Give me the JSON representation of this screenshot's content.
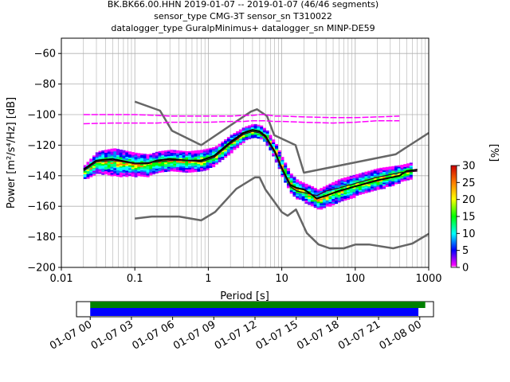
{
  "title_lines": [
    "BK.BK66.00.HHN   2019-01-07 -- 2019-01-07  (46/46 segments)",
    "sensor_type CMG-3T sensor_sn T310022",
    "datalogger_type GuralpMinimus+ datalogger_sn MINP-DE59"
  ],
  "chart_data": {
    "type": "line",
    "xlabel": "Period [s]",
    "ylabel": "Power [m²/s⁴/Hz] [dB]",
    "xscale": "log",
    "xlim": [
      0.01,
      1000
    ],
    "ylim": [
      -200,
      -50
    ],
    "x_ticks": [
      {
        "value": 0.01,
        "label": "0.01"
      },
      {
        "value": 0.1,
        "label": "0.1"
      },
      {
        "value": 1,
        "label": "1"
      },
      {
        "value": 10,
        "label": "10"
      },
      {
        "value": 100,
        "label": "100"
      },
      {
        "value": 1000,
        "label": "1000"
      }
    ],
    "y_ticks": [
      {
        "value": -60,
        "label": "−60"
      },
      {
        "value": -80,
        "label": "−80"
      },
      {
        "value": -100,
        "label": "−100"
      },
      {
        "value": -120,
        "label": "−120"
      },
      {
        "value": -140,
        "label": "−140"
      },
      {
        "value": -160,
        "label": "−160"
      },
      {
        "value": -180,
        "label": "−180"
      },
      {
        "value": -200,
        "label": "−200"
      }
    ],
    "grid": true,
    "colorbar": {
      "label": "[%]",
      "range": [
        0,
        30
      ],
      "ticks": [
        {
          "value": 0,
          "label": "0"
        },
        {
          "value": 5,
          "label": "5"
        },
        {
          "value": 10,
          "label": "10"
        },
        {
          "value": 15,
          "label": "15"
        },
        {
          "value": 20,
          "label": "20"
        },
        {
          "value": 25,
          "label": "25"
        },
        {
          "value": 30,
          "label": "30"
        }
      ]
    },
    "series": [
      {
        "key": "nhnm",
        "color": "#666666",
        "x": [
          0.1,
          0.22,
          0.32,
          0.8,
          3.8,
          4.6,
          6.3,
          7.9,
          15.4,
          20,
          354.8,
          1000
        ],
        "y": [
          -91.5,
          -97.4,
          -110.5,
          -120,
          -98,
          -96.5,
          -101,
          -113.5,
          -120,
          -138,
          -126,
          -112
        ]
      },
      {
        "key": "nlnm",
        "color": "#666666",
        "x": [
          0.1,
          0.17,
          0.4,
          0.8,
          1.24,
          2.4,
          4.3,
          5,
          6,
          10,
          12,
          15.6,
          21.9,
          31.6,
          45,
          70,
          101,
          154,
          328,
          600,
          1000
        ],
        "y": [
          -168,
          -166.7,
          -166.7,
          -169.2,
          -163.7,
          -148.6,
          -141.1,
          -141.1,
          -149,
          -163.8,
          -166.2,
          -162.1,
          -177.5,
          -185,
          -187.5,
          -187.5,
          -185,
          -185,
          -187.5,
          -184.4,
          -178
        ]
      },
      {
        "key": "mean",
        "color": "#000000",
        "x": [
          0.02,
          0.03,
          0.05,
          0.1,
          0.15,
          0.2,
          0.3,
          0.5,
          0.8,
          1.2,
          2,
          3,
          4,
          5,
          6,
          8,
          10,
          13,
          16,
          20,
          25,
          30,
          40,
          60,
          100,
          200,
          400,
          500,
          700
        ],
        "y": [
          -136,
          -130,
          -129,
          -132,
          -132,
          -130,
          -129,
          -130,
          -130,
          -127,
          -118,
          -112,
          -110,
          -111,
          -114,
          -124,
          -135,
          -146,
          -148,
          -149,
          -152,
          -155,
          -153,
          -150,
          -147,
          -143,
          -140,
          -137,
          -136
        ]
      },
      {
        "key": "median",
        "color": "#330022",
        "x": [
          0.02,
          0.03,
          0.05,
          0.1,
          0.2,
          0.3,
          0.5,
          0.8,
          1.2,
          2,
          3,
          4,
          5,
          6,
          8,
          10,
          13,
          16,
          20,
          30,
          40,
          60,
          100,
          200,
          400,
          700
        ],
        "y": [
          -137,
          -131,
          -130,
          -132,
          -131,
          -130,
          -130,
          -131,
          -128,
          -119,
          -113,
          -111,
          -112,
          -115,
          -125,
          -136,
          -147,
          -150,
          -151,
          -153,
          -150,
          -148,
          -145,
          -141,
          -138,
          -137
        ]
      },
      {
        "key": "upper_mode",
        "color": "#ff00ff",
        "x": [
          0.02,
          0.05,
          0.1,
          0.2,
          0.3,
          0.5,
          1,
          2,
          3,
          4,
          5,
          6,
          8,
          10,
          20,
          50,
          100,
          200,
          400
        ],
        "y": [
          -100,
          -100,
          -100,
          -100.5,
          -101,
          -101,
          -101,
          -101,
          -100.5,
          -100.5,
          -100,
          -100,
          -101,
          -101,
          -101.5,
          -102,
          -102,
          -101.5,
          -101
        ]
      },
      {
        "key": "lower_mode",
        "color": "#ff00ff",
        "x": [
          0.02,
          0.05,
          0.1,
          0.2,
          0.3,
          0.5,
          1,
          2,
          3,
          4,
          5,
          6,
          8,
          10,
          20,
          50,
          100,
          200,
          400
        ],
        "y": [
          -106,
          -105.5,
          -105.5,
          -105.5,
          -105,
          -105,
          -105,
          -104.5,
          -104.5,
          -104,
          -104,
          -104,
          -104.5,
          -104.5,
          -105,
          -105.5,
          -105,
          -104,
          -104
        ]
      }
    ],
    "pdf_band": {
      "x": [
        0.02,
        0.03,
        0.05,
        0.1,
        0.15,
        0.2,
        0.3,
        0.5,
        0.8,
        1.2,
        2,
        3,
        4,
        5,
        6,
        8,
        10,
        13,
        16,
        20,
        25,
        30,
        40,
        60,
        100,
        200,
        400,
        600
      ],
      "upper": [
        -133,
        -124,
        -122,
        -125,
        -126,
        -124,
        -123,
        -124,
        -123,
        -121,
        -113,
        -108,
        -106,
        -107,
        -110,
        -119,
        -129,
        -139,
        -143,
        -145,
        -147,
        -149,
        -146,
        -142,
        -139,
        -135,
        -133,
        -131
      ],
      "lower": [
        -142,
        -138,
        -140,
        -140,
        -140,
        -138,
        -137,
        -137,
        -137,
        -133,
        -124,
        -117,
        -115,
        -116,
        -119,
        -130,
        -142,
        -152,
        -155,
        -157,
        -160,
        -162,
        -160,
        -157,
        -153,
        -149,
        -144,
        -141
      ]
    },
    "coverage": {
      "x_tick_labels": [
        "01-07 00",
        "01-07 03",
        "01-07 06",
        "01-07 09",
        "01-07 12",
        "01-07 15",
        "01-07 18",
        "01-07 21",
        "01-08 00"
      ],
      "range_hours": [
        -1,
        25
      ],
      "bars": [
        {
          "key": "data",
          "color": "#008000",
          "start_hours": 0,
          "end_hours": 24.4
        },
        {
          "key": "used",
          "color": "#0000ff",
          "start_hours": 0,
          "end_hours": 23.9
        }
      ]
    }
  }
}
